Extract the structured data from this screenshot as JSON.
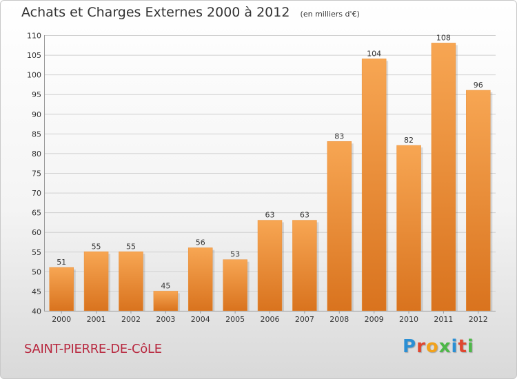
{
  "chart_data": {
    "type": "bar",
    "title": "Achats et Charges Externes 2000 à 2012",
    "unit_note": "(en milliers d'€)",
    "categories": [
      "2000",
      "2001",
      "2002",
      "2003",
      "2004",
      "2005",
      "2006",
      "2007",
      "2008",
      "2009",
      "2010",
      "2011",
      "2012"
    ],
    "values": [
      51,
      55,
      55,
      45,
      56,
      53,
      63,
      63,
      83,
      104,
      82,
      108,
      96
    ],
    "ylim": [
      40,
      110
    ],
    "yticks": [
      40,
      45,
      50,
      55,
      60,
      65,
      70,
      75,
      80,
      85,
      90,
      95,
      100,
      105,
      110
    ],
    "grid": true,
    "data_labels": true,
    "bar_color_top": "#f7a653",
    "bar_color_bottom": "#d9731e"
  },
  "footer": {
    "commune": "SAINT-PIERRE-DE-CôLE",
    "brand": "Proxiti",
    "brand_colors": [
      "#2b8fd4",
      "#e0462f",
      "#f2a21b",
      "#4db848",
      "#2b8fd4",
      "#e0462f",
      "#4db848"
    ]
  }
}
